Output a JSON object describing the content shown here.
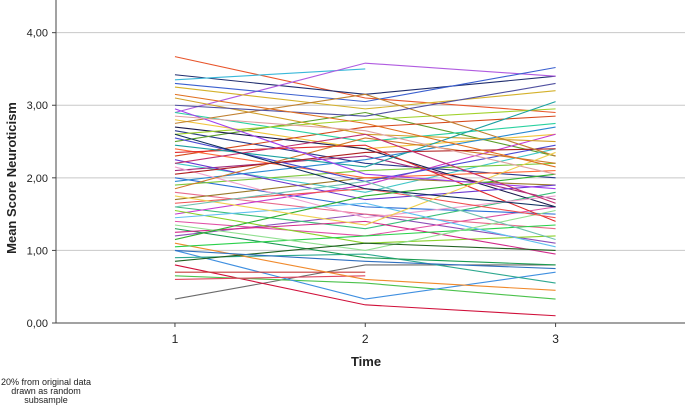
{
  "chart_data": {
    "type": "line",
    "y_label": "Mean Score Neuroticism",
    "x_label": "Time",
    "note": [
      "20% from original data",
      "drawn as random",
      "subsample"
    ],
    "x": [
      1,
      2,
      3
    ],
    "xlim": [
      0.375,
      3.68
    ],
    "xticks": [
      1,
      2,
      3
    ],
    "ylim": [
      0,
      4.45
    ],
    "yticks": [
      {
        "value": 0,
        "label": "0,00"
      },
      {
        "value": 1,
        "label": "1,00"
      },
      {
        "value": 2,
        "label": "2,00"
      },
      {
        "value": 3,
        "label": "3,00"
      },
      {
        "value": 4,
        "label": "4,00"
      }
    ],
    "grid": true,
    "series": [
      {
        "color": "#e8542a",
        "values": [
          3.67,
          3.1,
          2.9
        ]
      },
      {
        "color": "#1f2d6e",
        "values": [
          3.42,
          3.15,
          3.4
        ]
      },
      {
        "color": "#39b8d9",
        "values": [
          3.35,
          3.5,
          null
        ]
      },
      {
        "color": "#b05be0",
        "values": [
          2.9,
          3.58,
          3.4
        ]
      },
      {
        "color": "#3a5fcf",
        "values": [
          3.3,
          3.05,
          3.52
        ]
      },
      {
        "color": "#d4b12a",
        "values": [
          3.25,
          2.95,
          3.2
        ]
      },
      {
        "color": "#6a6a6a",
        "values": [
          0.33,
          0.8,
          0.8
        ]
      },
      {
        "color": "#d0103a",
        "values": [
          0.8,
          0.25,
          0.1
        ]
      },
      {
        "color": "#4cc24c",
        "values": [
          0.65,
          0.55,
          0.33
        ]
      },
      {
        "color": "#3f8fe0",
        "values": [
          1.0,
          0.33,
          0.7
        ]
      },
      {
        "color": "#c73b3b",
        "values": [
          0.7,
          0.7,
          null
        ]
      },
      {
        "color": "#e0455f",
        "values": [
          0.6,
          0.65,
          null
        ]
      },
      {
        "color": "#2ea88f",
        "values": [
          0.9,
          0.95,
          0.55
        ]
      },
      {
        "color": "#f08a2c",
        "values": [
          1.1,
          0.6,
          0.45
        ]
      },
      {
        "color": "#8c4fb8",
        "values": [
          1.2,
          1.5,
          1.1
        ]
      },
      {
        "color": "#1c9c52",
        "values": [
          1.3,
          0.9,
          0.8
        ]
      },
      {
        "color": "#e04fa5",
        "values": [
          1.4,
          1.2,
          1.6
        ]
      },
      {
        "color": "#2a3a8a",
        "values": [
          2.65,
          2.2,
          2.0
        ]
      },
      {
        "color": "#f0c43a",
        "values": [
          2.8,
          2.4,
          2.6
        ]
      },
      {
        "color": "#5a9e2a",
        "values": [
          2.5,
          2.9,
          2.3
        ]
      },
      {
        "color": "#d64a1c",
        "values": [
          2.3,
          2.7,
          2.85
        ]
      },
      {
        "color": "#41c7c7",
        "values": [
          2.2,
          1.8,
          2.4
        ]
      },
      {
        "color": "#a02a7a",
        "values": [
          2.1,
          2.3,
          1.7
        ]
      },
      {
        "color": "#2b6fd6",
        "values": [
          2.0,
          1.6,
          1.5
        ]
      },
      {
        "color": "#7cc83a",
        "values": [
          1.9,
          2.1,
          2.2
        ]
      },
      {
        "color": "#e86a8a",
        "values": [
          1.8,
          1.5,
          1.3
        ]
      },
      {
        "color": "#9a7a2a",
        "values": [
          1.7,
          2.0,
          1.9
        ]
      },
      {
        "color": "#3abf7a",
        "values": [
          1.6,
          1.3,
          1.8
        ]
      },
      {
        "color": "#c43ad1",
        "values": [
          1.5,
          1.9,
          2.6
        ]
      },
      {
        "color": "#1d1d4f",
        "values": [
          2.7,
          2.4,
          1.6
        ]
      },
      {
        "color": "#ff6a3a",
        "values": [
          2.4,
          2.0,
          2.1
        ]
      },
      {
        "color": "#6a3ad1",
        "values": [
          2.25,
          1.7,
          1.9
        ]
      },
      {
        "color": "#2ad1a0",
        "values": [
          2.9,
          2.5,
          2.75
        ]
      },
      {
        "color": "#d1a02a",
        "values": [
          3.1,
          2.6,
          2.5
        ]
      },
      {
        "color": "#a0d12a",
        "values": [
          2.6,
          2.8,
          2.95
        ]
      },
      {
        "color": "#e02a2a",
        "values": [
          2.35,
          2.45,
          1.4
        ]
      },
      {
        "color": "#2a8ad1",
        "values": [
          1.95,
          2.25,
          2.7
        ]
      },
      {
        "color": "#8ad12a",
        "values": [
          1.55,
          1.1,
          1.2
        ]
      },
      {
        "color": "#d12a8a",
        "values": [
          1.25,
          1.4,
          0.95
        ]
      },
      {
        "color": "#2ad14a",
        "values": [
          1.05,
          1.2,
          1.35
        ]
      },
      {
        "color": "#f0a0d0",
        "values": [
          2.15,
          1.45,
          1.75
        ]
      },
      {
        "color": "#4a4ad1",
        "values": [
          2.55,
          1.95,
          2.45
        ]
      },
      {
        "color": "#d17a2a",
        "values": [
          1.85,
          2.55,
          2.2
        ]
      },
      {
        "color": "#1aa0a0",
        "values": [
          2.45,
          2.15,
          3.05
        ]
      },
      {
        "color": "#b02020",
        "values": [
          2.05,
          2.35,
          2.4
        ]
      },
      {
        "color": "#60c0f0",
        "values": [
          1.45,
          1.65,
          1.05
        ]
      },
      {
        "color": "#90e090",
        "values": [
          1.35,
          1.0,
          1.55
        ]
      },
      {
        "color": "#c08030",
        "values": [
          2.75,
          3.15,
          2.3
        ]
      },
      {
        "color": "#5050a0",
        "values": [
          3.0,
          2.85,
          3.3
        ]
      },
      {
        "color": "#f05050",
        "values": [
          1.65,
          1.85,
          1.45
        ]
      },
      {
        "color": "#30b030",
        "values": [
          1.15,
          1.75,
          2.05
        ]
      },
      {
        "color": "#a040f0",
        "values": [
          2.95,
          2.05,
          1.85
        ]
      },
      {
        "color": "#f0d050",
        "values": [
          1.75,
          1.35,
          2.35
        ]
      },
      {
        "color": "#206020",
        "values": [
          0.85,
          1.1,
          1.0
        ]
      },
      {
        "color": "#e0a0a0",
        "values": [
          2.85,
          2.65,
          2.05
        ]
      },
      {
        "color": "#3070c0",
        "values": [
          1.0,
          0.85,
          0.75
        ]
      },
      {
        "color": "#c03070",
        "values": [
          2.2,
          2.6,
          1.65
        ]
      },
      {
        "color": "#70c0b0",
        "values": [
          1.6,
          1.95,
          1.15
        ]
      },
      {
        "color": "#e07020",
        "values": [
          3.15,
          2.75,
          2.15
        ]
      },
      {
        "color": "#103060",
        "values": [
          2.6,
          1.85,
          1.6
        ]
      }
    ]
  }
}
